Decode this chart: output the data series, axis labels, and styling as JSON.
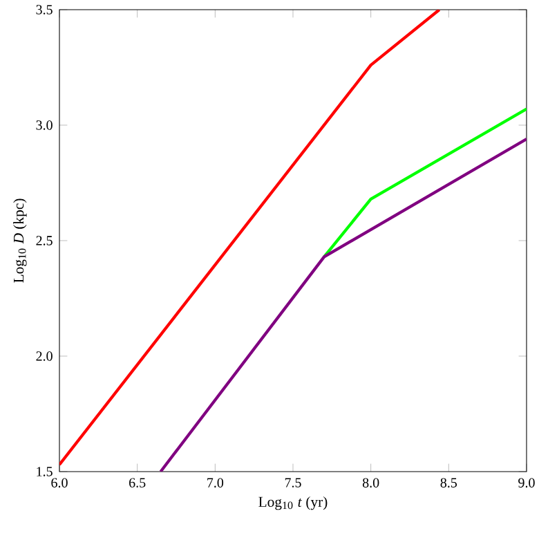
{
  "chart_data": {
    "type": "line",
    "xlabel": "Log$_{10}$ *t*  (yr)",
    "ylabel": "Log$_{10}$ *D*  (kpc)",
    "xlim": [
      6.0,
      9.0
    ],
    "ylim": [
      1.5,
      3.5
    ],
    "xticks": [
      {
        "value": 6.0,
        "label": "6.0"
      },
      {
        "value": 6.5,
        "label": "6.5"
      },
      {
        "value": 7.0,
        "label": "7.0"
      },
      {
        "value": 7.5,
        "label": "7.5"
      },
      {
        "value": 8.0,
        "label": "8.0"
      },
      {
        "value": 8.5,
        "label": "8.5"
      },
      {
        "value": 9.0,
        "label": "9.0"
      }
    ],
    "yticks": [
      {
        "value": 1.5,
        "label": "1.5"
      },
      {
        "value": 2.0,
        "label": "2.0"
      },
      {
        "value": 2.5,
        "label": "2.5"
      },
      {
        "value": 3.0,
        "label": "3.0"
      },
      {
        "value": 3.5,
        "label": "3.5"
      }
    ],
    "series": [
      {
        "color": "#ff0000",
        "x": [
          6.0,
          8.0,
          8.44
        ],
        "values": [
          1.53,
          3.26,
          3.5
        ]
      },
      {
        "color": "#00ff00",
        "x": [
          7.7,
          8.0,
          9.0
        ],
        "values": [
          2.43,
          2.68,
          3.07
        ]
      },
      {
        "color": "#800080",
        "x": [
          6.65,
          7.7,
          9.0
        ],
        "values": [
          1.5,
          2.43,
          2.94
        ]
      }
    ],
    "grid": false,
    "marker": "none",
    "line_style": "solid"
  }
}
